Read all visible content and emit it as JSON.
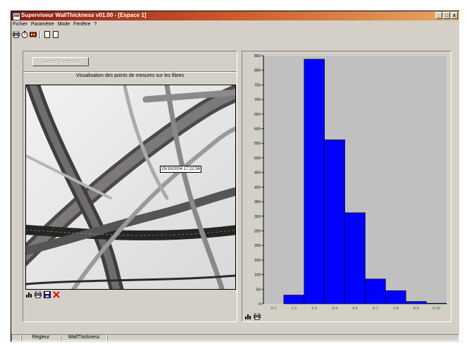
{
  "window": {
    "title": "Superviseur WallThickness v01.00 - [Espace 1]",
    "app_icon_text": "AW",
    "buttons": [
      "_",
      "&#9633;",
      "x"
    ]
  },
  "menu": [
    "Fichier",
    "Paramètre",
    "Mode",
    "Fenêtre",
    "?"
  ],
  "toolbar": {
    "icons": [
      "printer-icon",
      "timer-icon",
      "film-icon",
      "page-icon",
      "page-icon"
    ]
  },
  "left_panel": {
    "measure_button": "Lancer la mesure",
    "caption": "Visualisation des points de mesures sur les fibres",
    "timestamp": "25/10/2004 17:22:56",
    "bottom_icons": [
      "chart-icon",
      "printer-icon",
      "save-icon",
      "delete-icon"
    ]
  },
  "right_panel": {
    "bottom_icons": [
      "chart-icon",
      "printer-icon"
    ]
  },
  "status": {
    "cells": [
      "",
      "Régleur",
      "WallThickness",
      ""
    ]
  },
  "colors": {
    "bar_fill": "#0000ff",
    "plot_bg": "#c0c0c0",
    "x_label": "#008000",
    "title_start": "#8a1a10",
    "title_end": "#e8a860"
  },
  "chart_data": {
    "type": "bar",
    "categories": [
      "0-1",
      "1-2",
      "2-3",
      "3-4",
      "4-5",
      "5-7",
      "7-8",
      "8-9",
      "9-10"
    ],
    "values": [
      0,
      30,
      838,
      562,
      312,
      85,
      45,
      8,
      2
    ],
    "ylim": [
      0,
      850
    ],
    "yticks": [
      0,
      50,
      100,
      150,
      200,
      250,
      300,
      350,
      400,
      450,
      500,
      550,
      600,
      650,
      700,
      750,
      800,
      850
    ],
    "grid": false
  }
}
